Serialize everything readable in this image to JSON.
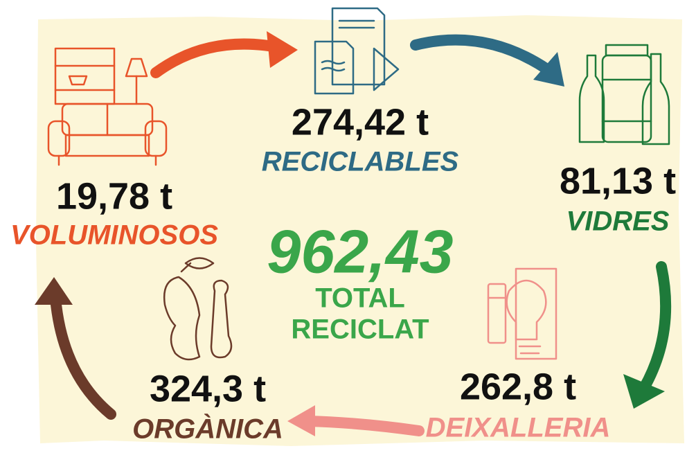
{
  "total": {
    "value": "962,43",
    "label_line1": "TOTAL",
    "label_line2": "RECICLAT"
  },
  "nodes": [
    {
      "amount": "19,78 t",
      "label": "VOLUMINOSOS"
    },
    {
      "amount": "274,42 t",
      "label": "RECICLABLES"
    },
    {
      "amount": "81,13 t",
      "label": "VIDRES"
    },
    {
      "amount": "262,8 t",
      "label": "DEIXALLERIA"
    },
    {
      "amount": "324,3 t",
      "label": "ORGÀNICA"
    }
  ]
}
